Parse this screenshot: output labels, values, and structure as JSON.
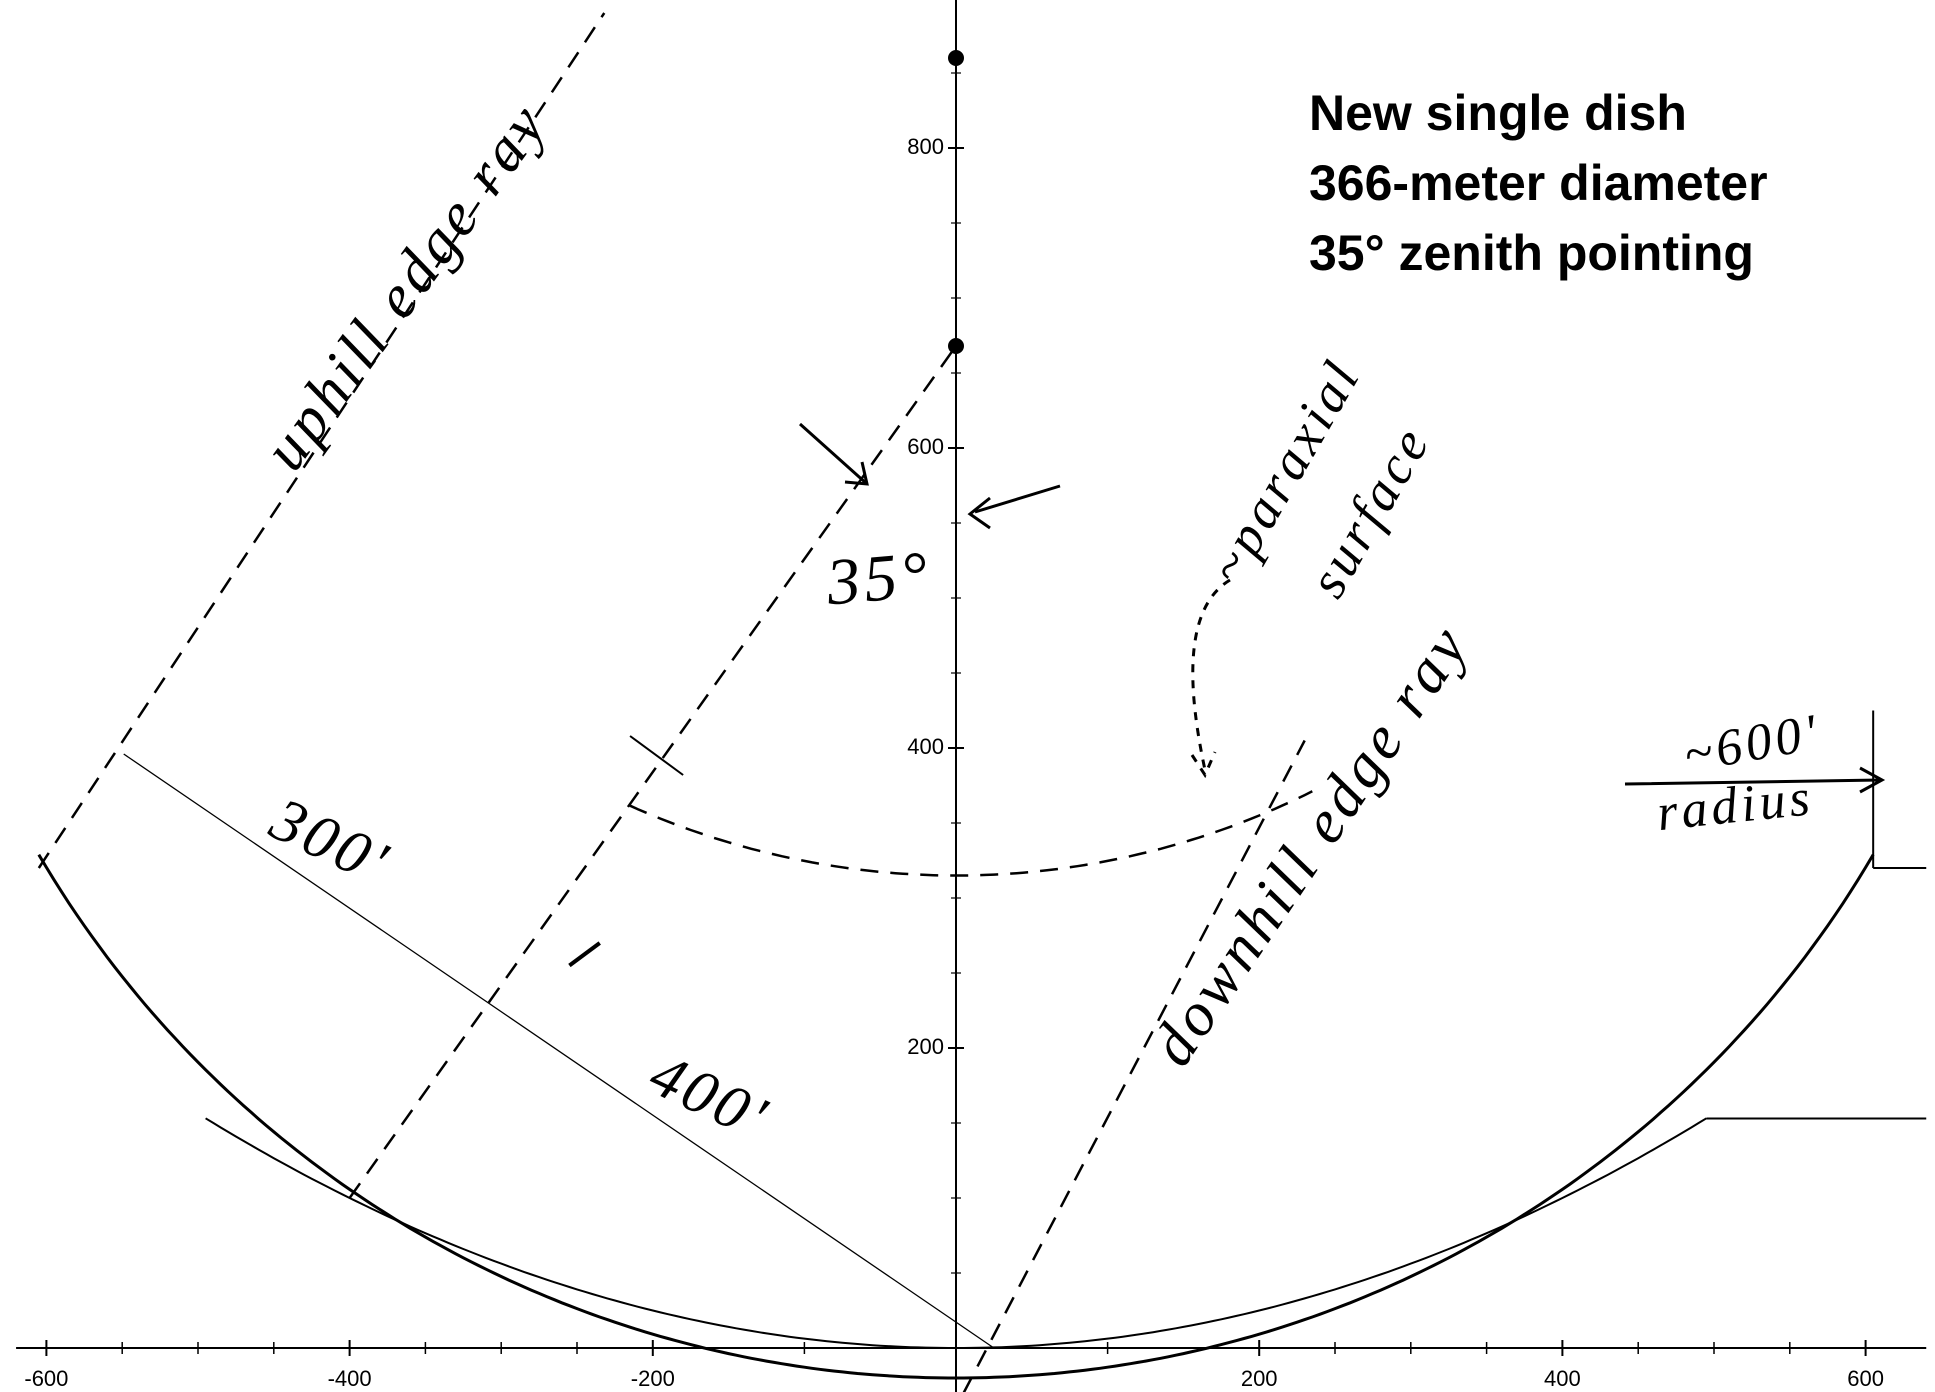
{
  "title": [
    "New single dish",
    "366-meter diameter",
    "35° zenith pointing"
  ],
  "axes": {
    "xticks": [
      -600,
      -400,
      -200,
      200,
      400,
      600
    ],
    "yticks": [
      200,
      400,
      600,
      800
    ]
  },
  "annotations": {
    "uphill": "uphill edge ray",
    "downhill": "downhill edge ray",
    "paraxial_1": "~paraxial",
    "paraxial_2": "surface",
    "angle": "35°",
    "len_300": "300'",
    "len_400": "400'",
    "radius_1": "~600'",
    "radius_2": "radius"
  }
}
